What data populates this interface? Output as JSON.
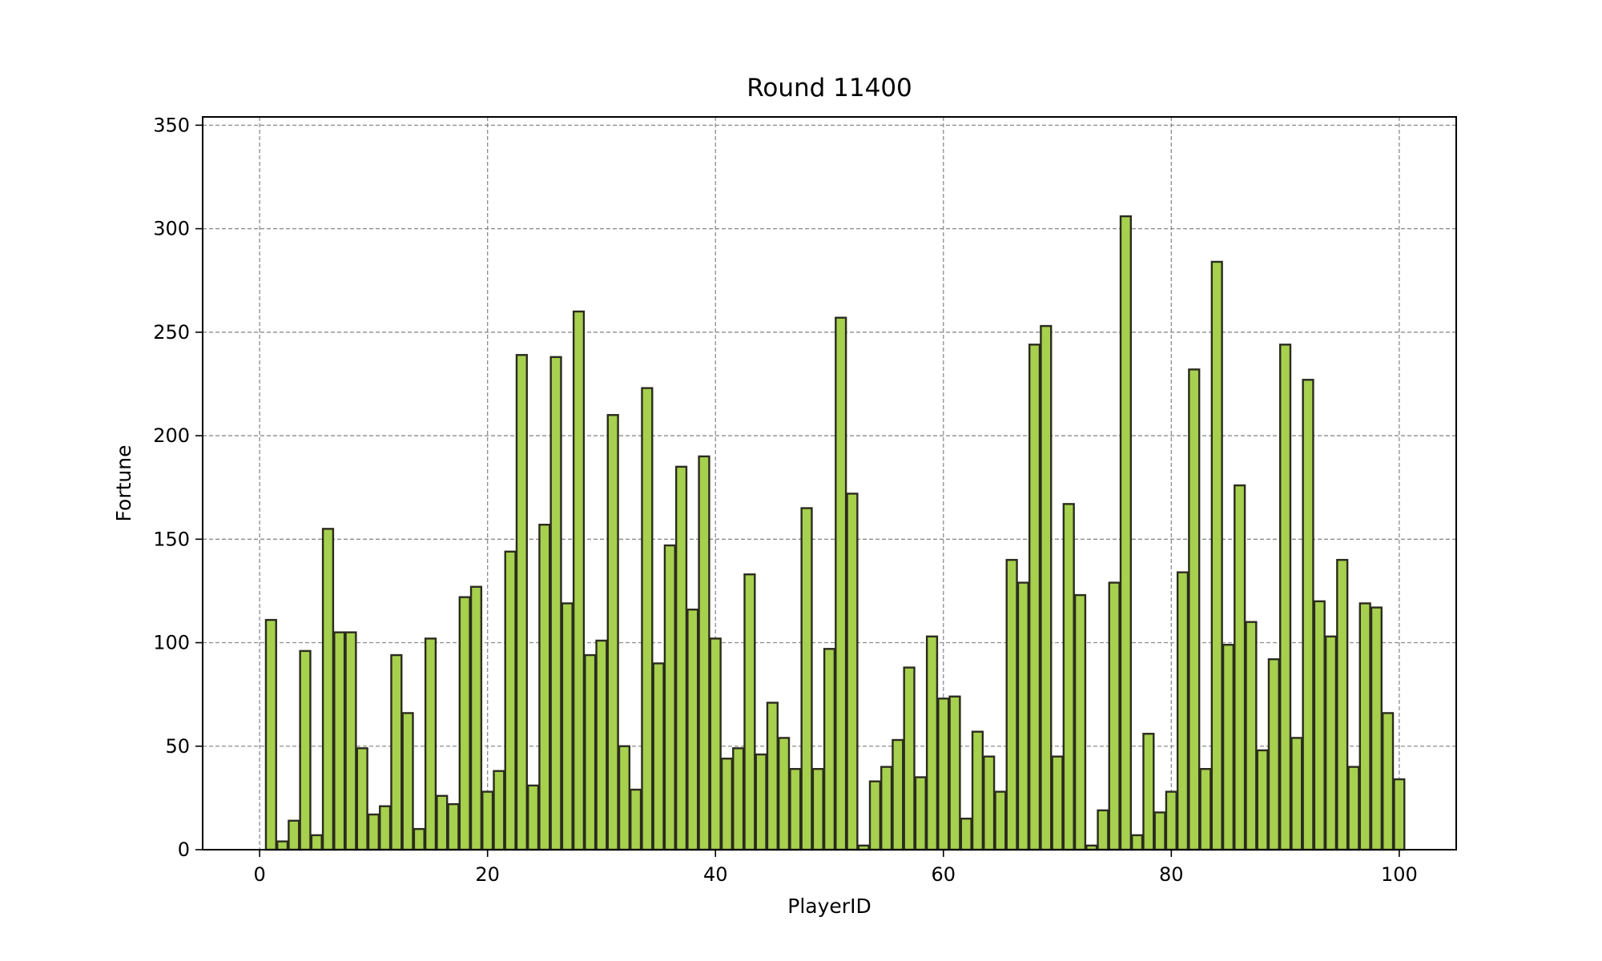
{
  "chart_data": {
    "type": "bar",
    "title": "Round 11400",
    "xlabel": "PlayerID",
    "ylabel": "Fortune",
    "xlim": [
      -5,
      105
    ],
    "ylim": [
      0,
      354
    ],
    "xticks": [
      0,
      20,
      40,
      60,
      80,
      100
    ],
    "yticks": [
      0,
      50,
      100,
      150,
      200,
      250,
      300,
      350
    ],
    "grid": true,
    "legend": "none",
    "bar_color": "#a6d04d",
    "bar_edge_color": "#2b2b1f",
    "grid_color": "#8c8c8c",
    "series": [
      {
        "x": [
          1,
          2,
          3,
          4,
          5,
          6,
          7,
          8,
          9,
          10,
          11,
          12,
          13,
          14,
          15,
          16,
          17,
          18,
          19,
          20,
          21,
          22,
          23,
          24,
          25,
          26,
          27,
          28,
          29,
          30,
          31,
          32,
          33,
          34,
          35,
          36,
          37,
          38,
          39,
          40,
          41,
          42,
          43,
          44,
          45,
          46,
          47,
          48,
          49,
          50,
          51,
          52,
          53,
          54,
          55,
          56,
          57,
          58,
          59,
          60,
          61,
          62,
          63,
          64,
          65,
          66,
          67,
          68,
          69,
          70,
          71,
          72,
          73,
          74,
          75,
          76,
          77,
          78,
          79,
          80,
          81,
          82,
          83,
          84,
          85,
          86,
          87,
          88,
          89,
          90,
          91,
          92,
          93,
          94,
          95,
          96,
          97,
          98,
          99,
          100
        ],
        "values": [
          111,
          4,
          14,
          96,
          7,
          155,
          105,
          105,
          49,
          17,
          21,
          94,
          66,
          10,
          102,
          26,
          22,
          122,
          127,
          28,
          38,
          144,
          239,
          31,
          157,
          238,
          119,
          260,
          94,
          101,
          210,
          50,
          29,
          223,
          90,
          147,
          185,
          116,
          190,
          102,
          44,
          49,
          133,
          46,
          71,
          54,
          39,
          165,
          39,
          97,
          257,
          172,
          2,
          33,
          40,
          53,
          88,
          35,
          103,
          73,
          74,
          15,
          57,
          45,
          28,
          140,
          129,
          244,
          253,
          45,
          167,
          123,
          2,
          19,
          129,
          306,
          7,
          56,
          18,
          28,
          134,
          232,
          39,
          284,
          99,
          176,
          110,
          48,
          92,
          244,
          54,
          227,
          120,
          103,
          140,
          40,
          119,
          117,
          66,
          34
        ]
      }
    ]
  }
}
